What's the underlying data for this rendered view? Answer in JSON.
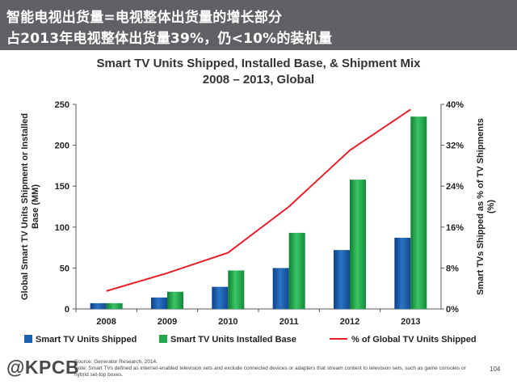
{
  "header": {
    "line1": "智能电视出货量=电视整体出货量的增长部分",
    "line2": "占2013年电视整体出货量39%，仍<10%的装机量"
  },
  "chart_data": {
    "type": "bar",
    "title": "Smart TV Units Shipped, Installed Base, & Shipment Mix",
    "subtitle": "2008 – 2013, Global",
    "categories": [
      "2008",
      "2009",
      "2010",
      "2011",
      "2012",
      "2013"
    ],
    "series": [
      {
        "name": "Smart TV Units Shipped",
        "type": "bar",
        "axis": "left",
        "values": [
          7,
          14,
          27,
          50,
          72,
          87
        ]
      },
      {
        "name": "Smart TV Units Installed Base",
        "type": "bar",
        "axis": "left",
        "values": [
          7,
          21,
          47,
          93,
          158,
          235
        ]
      },
      {
        "name": "% of Global TV Units Shipped",
        "type": "line",
        "axis": "right",
        "values": [
          3.5,
          7,
          11,
          20,
          31,
          39
        ]
      }
    ],
    "ylabel": "Global Smart TV Units Shipment or Installed Base (MM)",
    "ylabel_right": "Smart TVs Shipped as % of TV Shipments (%)",
    "ylim": [
      0,
      250
    ],
    "y_ticks": [
      "0",
      "50",
      "100",
      "150",
      "200",
      "250"
    ],
    "ylim_right": [
      0,
      40
    ],
    "y_ticks_right": [
      "0%",
      "8%",
      "16%",
      "24%",
      "32%",
      "40%"
    ],
    "grid": false,
    "legend_position": "bottom"
  },
  "colors": {
    "shipped": "#1f5fb0",
    "installed": "#22a84a",
    "line": "#e8202a"
  },
  "footer": {
    "brand": "@KPCB",
    "source": "Source: Generator Research, 2014.",
    "note": "Note: Smart TVs defined as internet-enabled television sets and exclude connected devices or adapters that stream content to television sets, such as game consoles or hybrid set-top boxes.",
    "page": "104"
  }
}
